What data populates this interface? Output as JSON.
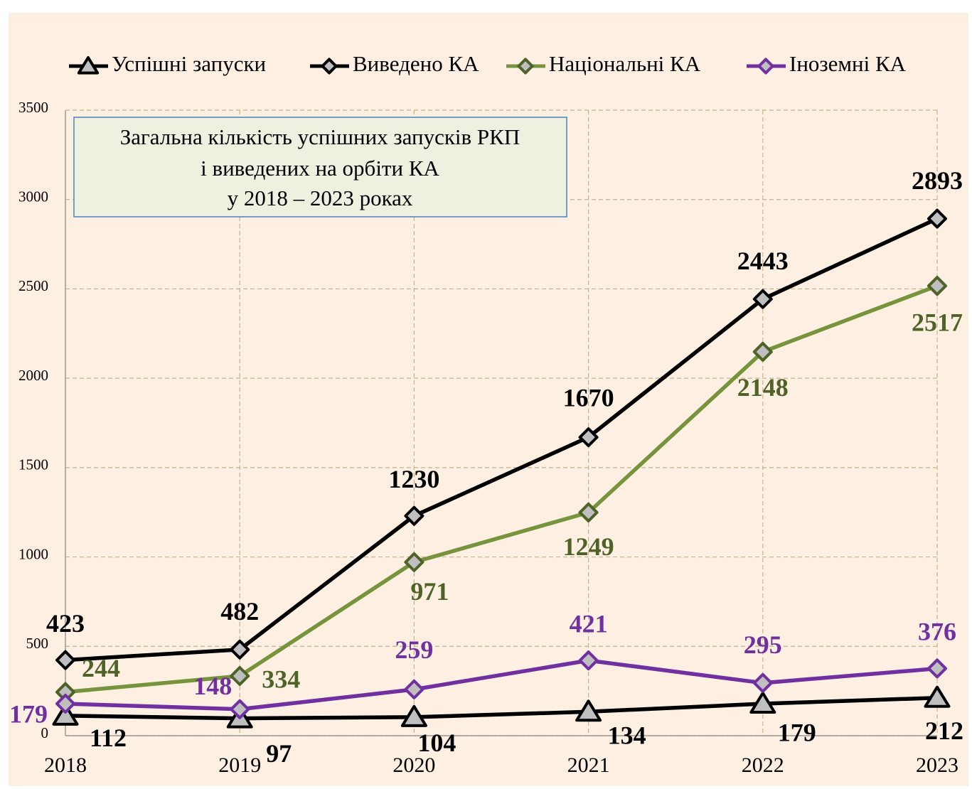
{
  "chart_data": {
    "type": "line",
    "title": [
      "Загальна кількість успішних запусків РКП",
      "і виведених на орбіти КА",
      "у 2018 – 2023 роках"
    ],
    "categories": [
      "2018",
      "2019",
      "2020",
      "2021",
      "2022",
      "2023"
    ],
    "ylim": [
      0,
      3500
    ],
    "yticks": [
      0,
      500,
      1000,
      1500,
      2000,
      2500,
      3000,
      3500
    ],
    "grid": true,
    "legend": "top",
    "series": [
      {
        "name": "Успішні запуски",
        "color": "#000000",
        "label_color": "#000000",
        "marker": "triangle",
        "values": [
          112,
          97,
          104,
          134,
          179,
          212
        ]
      },
      {
        "name": "Виведено КА",
        "color": "#000000",
        "label_color": "#000000",
        "marker": "diamond",
        "values": [
          423,
          482,
          1230,
          1670,
          2443,
          2893
        ]
      },
      {
        "name": "Національні КА",
        "color": "#77933c",
        "marker_stroke": "#4f6228",
        "label_color": "#4f6228",
        "marker": "diamond",
        "values": [
          244,
          334,
          971,
          1249,
          2148,
          2517
        ]
      },
      {
        "name": "Іноземні КА",
        "color": "#7030a0",
        "marker_stroke": "#7030a0",
        "label_color": "#7030a0",
        "marker": "diamond",
        "values": [
          179,
          148,
          259,
          421,
          295,
          376
        ]
      }
    ]
  }
}
